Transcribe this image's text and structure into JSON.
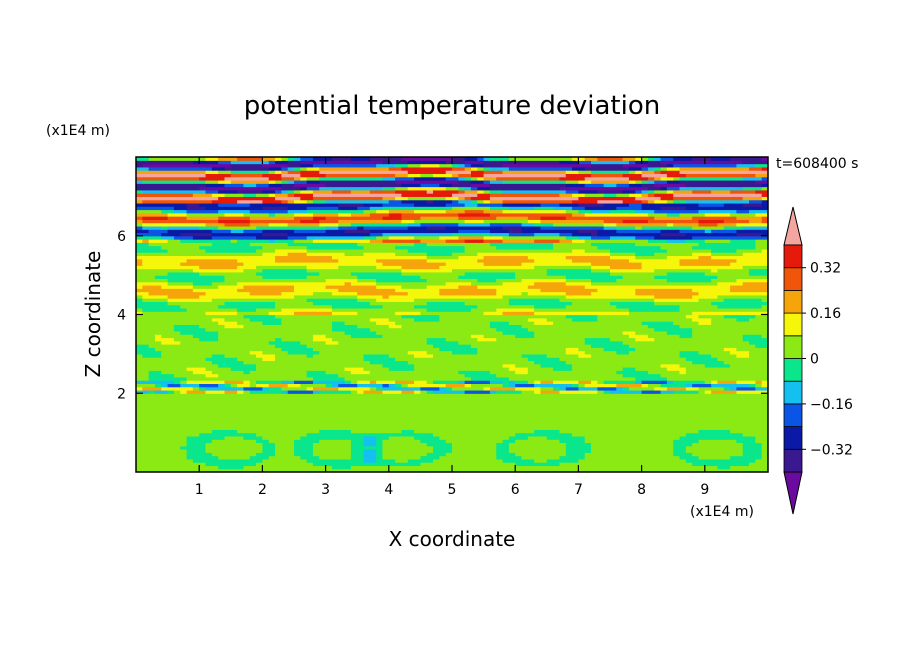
{
  "chart_data": {
    "type": "heatmap",
    "title": "potential temperature deviation",
    "xlabel": "X coordinate",
    "ylabel": "Z coordinate",
    "x_unit": "(x1E4 m)",
    "y_unit": "(x1E4 m)",
    "time_label": "t=608400 s",
    "xlim": [
      0,
      10
    ],
    "ylim": [
      0,
      8
    ],
    "x_ticks": [
      1,
      2,
      3,
      4,
      5,
      6,
      7,
      8,
      9
    ],
    "x_tick_labels": [
      "1",
      "2",
      "3",
      "4",
      "5",
      "6",
      "7",
      "8",
      "9"
    ],
    "y_ticks": [
      2,
      4,
      6
    ],
    "y_tick_labels": [
      "2",
      "4",
      "6"
    ],
    "colorbar": {
      "levels": [
        -0.4,
        -0.32,
        -0.24,
        -0.16,
        -0.08,
        0,
        0.08,
        0.16,
        0.24,
        0.32,
        0.4
      ],
      "tick_values": [
        0.32,
        0.16,
        0,
        -0.16,
        -0.32
      ],
      "tick_labels": [
        "0.32",
        "0.16",
        "0",
        "−0.16",
        "−0.32"
      ],
      "colors_low_to_high": [
        "#6a0a9e",
        "#3a1890",
        "#0a1aa6",
        "#0a55e6",
        "#14c0f0",
        "#0ae68c",
        "#8cea14",
        "#f6f60a",
        "#f5a50a",
        "#f0550a",
        "#e61a0a",
        "#f5a5a0"
      ]
    },
    "bands": [
      {
        "z_range": [
          0,
          2.0
        ],
        "dominant": 0.04,
        "note": "green lower layer with rolled eddies near zero"
      },
      {
        "z_range": [
          2.0,
          2.3
        ],
        "dominant": -0.1,
        "note": "thin mixed strip"
      },
      {
        "z_range": [
          2.3,
          4.0
        ],
        "dominant": 0.04,
        "note": "green/yellow with cyan patches"
      },
      {
        "z_range": [
          4.0,
          5.8
        ],
        "dominant": 0.1,
        "note": "yellow/green streaks"
      },
      {
        "z_range": [
          5.8,
          6.8
        ],
        "dominant": -0.2,
        "note": "alternating blue and pink layers"
      },
      {
        "z_range": [
          6.8,
          8.0
        ],
        "dominant": 0.0,
        "note": "strong alternating purple, red and pink"
      }
    ]
  }
}
